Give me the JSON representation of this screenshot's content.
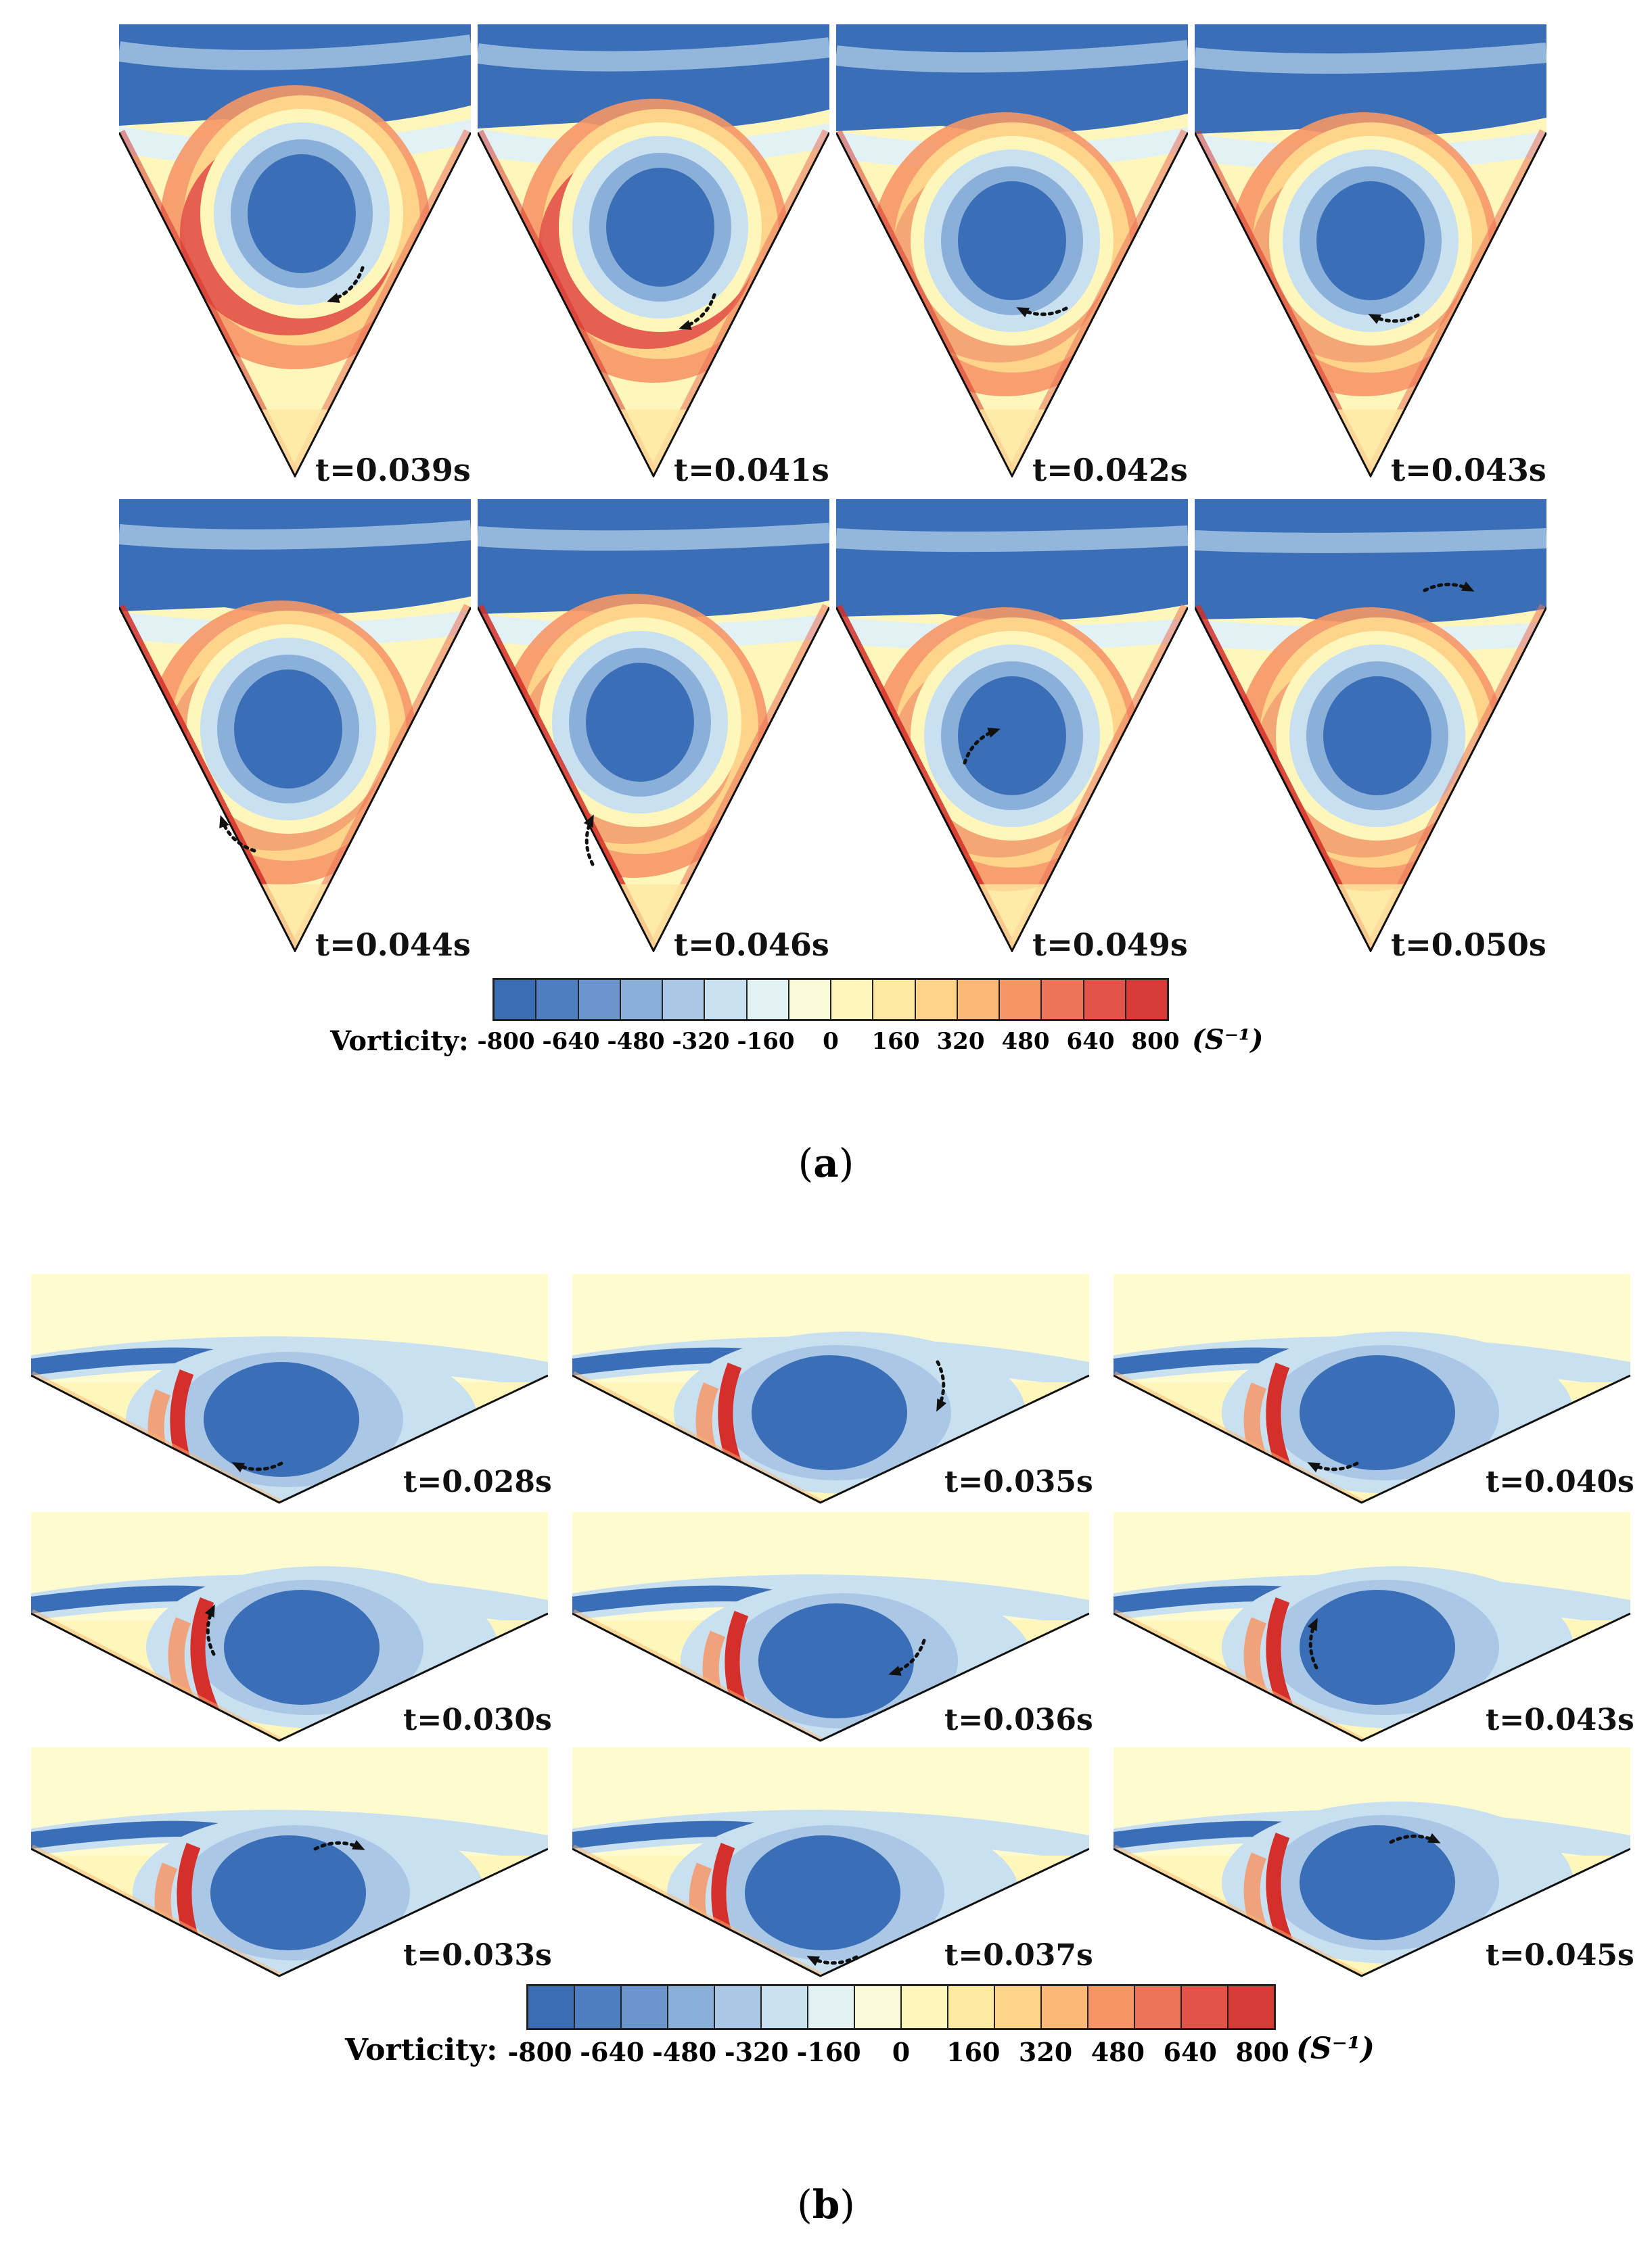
{
  "figure_a": {
    "caption_open": "(",
    "caption_letter": "a",
    "caption_close": ")",
    "panels": [
      {
        "time": "t=0.039s",
        "arrow": "down-left"
      },
      {
        "time": "t=0.041s",
        "arrow": "down-left"
      },
      {
        "time": "t=0.042s",
        "arrow": "left"
      },
      {
        "time": "t=0.043s",
        "arrow": "left"
      },
      {
        "time": "t=0.044s",
        "arrow": "up-left"
      },
      {
        "time": "t=0.046s",
        "arrow": "up"
      },
      {
        "time": "t=0.049s",
        "arrow": "up-right"
      },
      {
        "time": "t=0.050s",
        "arrow": "right"
      }
    ],
    "colorbar": {
      "title": "Vorticity:",
      "ticks": [
        "-800",
        "-640",
        "-480",
        "-320",
        "-160",
        "0",
        "160",
        "320",
        "480",
        "640",
        "800"
      ],
      "unit": "(S⁻¹)"
    }
  },
  "figure_b": {
    "caption_open": "(",
    "caption_letter": "b",
    "caption_close": ")",
    "panels": [
      {
        "time": "t=0.028s",
        "arrow": "left"
      },
      {
        "time": "t=0.035s",
        "arrow": "down"
      },
      {
        "time": "t=0.040s",
        "arrow": "left"
      },
      {
        "time": "t=0.030s",
        "arrow": "up"
      },
      {
        "time": "t=0.036s",
        "arrow": "down-left"
      },
      {
        "time": "t=0.043s",
        "arrow": "up"
      },
      {
        "time": "t=0.033s",
        "arrow": "right"
      },
      {
        "time": "t=0.037s",
        "arrow": "left"
      },
      {
        "time": "t=0.045s",
        "arrow": "right"
      }
    ],
    "colorbar": {
      "title": "Vorticity:",
      "ticks": [
        "-800",
        "-640",
        "-480",
        "-320",
        "-160",
        "0",
        "160",
        "320",
        "480",
        "640",
        "800"
      ],
      "unit": "(S⁻¹)"
    }
  },
  "colors": {
    "scale": [
      "#3b6db5",
      "#4f7ec0",
      "#6b95cc",
      "#8aafd9",
      "#aac8e6",
      "#c8e0ef",
      "#e2f1f4",
      "#f7fbd8",
      "#fff6bb",
      "#fee9a2",
      "#fdd48a",
      "#fbb877",
      "#f69666",
      "#ec7459",
      "#e2534a",
      "#d63b37"
    ],
    "deep_blue": "#3a6fb8",
    "deep_red": "#d42f2a",
    "cream": "#fffbd0"
  }
}
